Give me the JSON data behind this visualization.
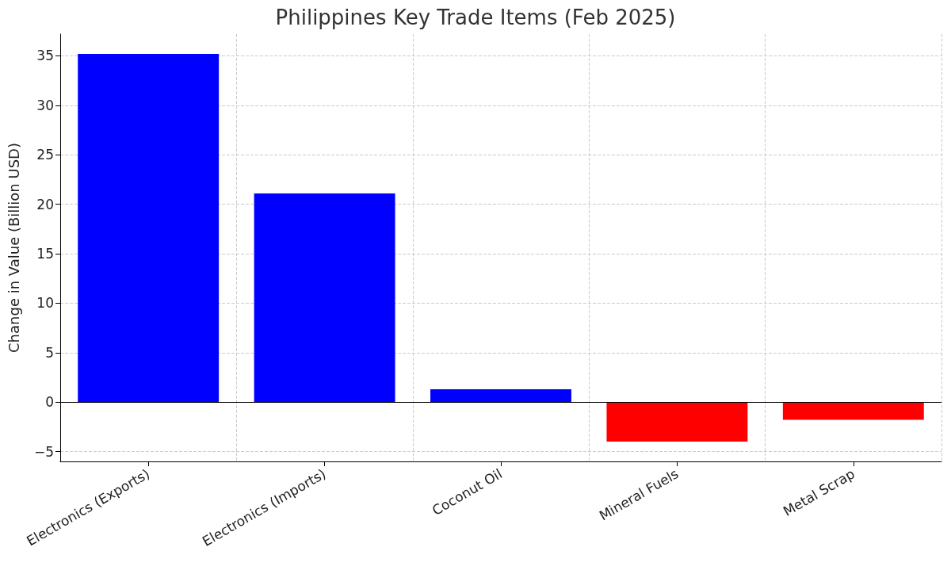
{
  "chart_data": {
    "type": "bar",
    "title": "Philippines Key Trade Items (Feb 2025)",
    "ylabel": "Change in Value (Billion USD)",
    "categories": [
      "Electronics (Exports)",
      "Electronics (Imports)",
      "Coconut Oil",
      "Mineral Fuels",
      "Metal Scrap"
    ],
    "values": [
      35.2,
      21.1,
      1.3,
      -4.0,
      -1.8
    ],
    "colors": [
      "#0000ff",
      "#0000ff",
      "#0000ff",
      "#ff0000",
      "#ff0000"
    ],
    "ylim": [
      -6,
      37.2
    ],
    "yticks": [
      -5,
      0,
      5,
      10,
      15,
      20,
      25,
      30,
      35
    ],
    "ref_lines": [
      {
        "axis": "y",
        "value": 0,
        "color": "#000000",
        "line_style": "solid"
      }
    ],
    "grid": true
  }
}
